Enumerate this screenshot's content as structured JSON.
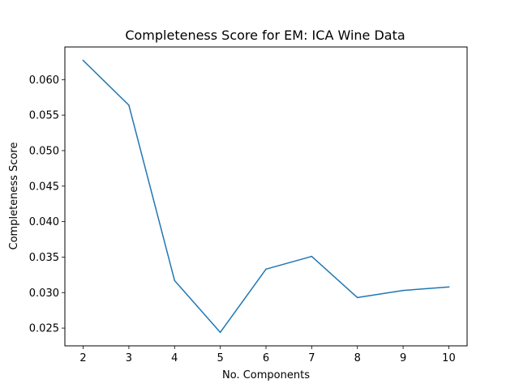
{
  "chart_data": {
    "type": "line",
    "title": "Completeness Score for EM: ICA Wine Data",
    "xlabel": "No. Components",
    "ylabel": "Completeness Score",
    "x": [
      2,
      3,
      4,
      5,
      6,
      7,
      8,
      9,
      10
    ],
    "series": [
      {
        "values": [
          0.0627,
          0.0564,
          0.0317,
          0.0244,
          0.0333,
          0.0351,
          0.0293,
          0.0303,
          0.0308
        ]
      }
    ],
    "xlim": [
      1.6,
      10.4
    ],
    "ylim": [
      0.0225,
      0.0646
    ],
    "xticks": [
      2,
      3,
      4,
      5,
      6,
      7,
      8,
      9,
      10
    ],
    "yticks": [
      0.025,
      0.03,
      0.035,
      0.04,
      0.045,
      0.05,
      0.055,
      0.06
    ],
    "ytick_labels": [
      "0.025",
      "0.030",
      "0.035",
      "0.040",
      "0.045",
      "0.050",
      "0.055",
      "0.060"
    ],
    "grid": false,
    "legend": "none",
    "line_color": "#1f77b4"
  }
}
